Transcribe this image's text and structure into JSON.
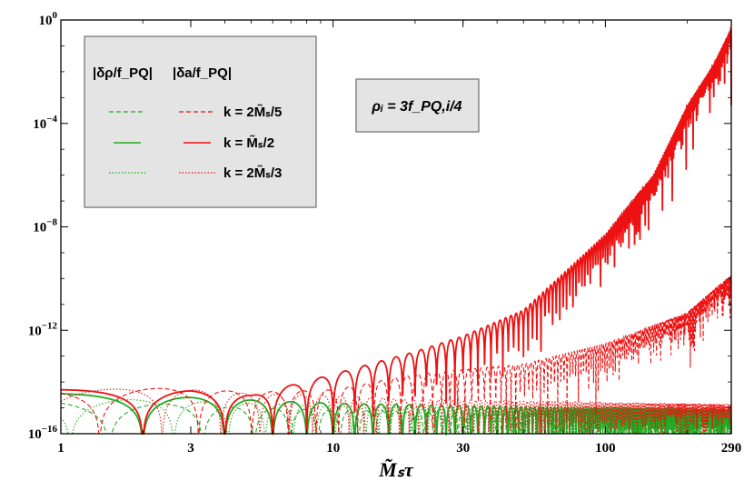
{
  "chart_data": {
    "type": "line",
    "title": "",
    "xlabel": "M̃ₛτ",
    "ylabel": "",
    "x_scale": "log",
    "y_scale": "log",
    "xlim": [
      1,
      290
    ],
    "ylim": [
      1e-16,
      1
    ],
    "x_ticks": [
      1,
      3,
      10,
      30,
      100,
      290
    ],
    "x_tick_labels": [
      "1",
      "3",
      "10",
      "30",
      "100",
      "290"
    ],
    "y_ticks": [
      1e-16,
      1e-12,
      1e-08,
      0.0001,
      1
    ],
    "y_tick_labels": [
      {
        "base": "10",
        "exp": "−16"
      },
      {
        "base": "10",
        "exp": "−12"
      },
      {
        "base": "10",
        "exp": "−8"
      },
      {
        "base": "10",
        "exp": "−4"
      },
      {
        "base": "10",
        "exp": "0"
      }
    ],
    "grid": false,
    "legend": {
      "position": "top-left",
      "column_headers": [
        "|δρ/f_PQ|",
        "|δa/f_PQ|"
      ],
      "rows": [
        "k = 2M̃ₛ/5",
        "k = M̃ₛ/2",
        "k =  2M̃ₛ/3"
      ]
    },
    "annotation": "ρᵢ = 3f_PQ,i/4",
    "series": [
      {
        "name": "|δρ/f_PQ|, k = 2M̃ₛ/5",
        "color": "#22aa22",
        "dash": "dashed",
        "x": [
          1,
          2,
          5,
          10,
          30,
          100,
          290
        ],
        "y": [
          2e-15,
          1.5e-15,
          1e-15,
          8e-16,
          7e-16,
          6e-16,
          5e-16
        ]
      },
      {
        "name": "|δρ/f_PQ|, k = M̃ₛ/2",
        "color": "#22aa22",
        "dash": "solid",
        "x": [
          1,
          2,
          5,
          10,
          30,
          100,
          290
        ],
        "y": [
          3.5e-15,
          3e-15,
          2e-15,
          1.5e-15,
          1.2e-15,
          1e-15,
          9e-16
        ]
      },
      {
        "name": "|δρ/f_PQ|, k = 2M̃ₛ/3",
        "color": "#22aa22",
        "dash": "dotted",
        "x": [
          1,
          2,
          5,
          10,
          30,
          100,
          290
        ],
        "y": [
          2.5e-15,
          2e-15,
          1.5e-15,
          1.2e-15,
          1e-15,
          8e-16,
          7e-16
        ]
      },
      {
        "name": "|δa/f_PQ|, k = 2M̃ₛ/5",
        "color": "#ee1111",
        "dash": "dashed",
        "x": [
          1,
          3,
          5,
          10,
          20,
          30,
          50,
          100,
          200,
          290
        ],
        "y": [
          6e-15,
          5.5e-15,
          4e-15,
          5e-15,
          2e-14,
          3e-14,
          5e-14,
          3e-13,
          5e-12,
          1.5e-10
        ]
      },
      {
        "name": "|δa/f_PQ|, k = M̃ₛ/2",
        "color": "#ee1111",
        "dash": "solid",
        "x": [
          1,
          3,
          5,
          10,
          20,
          30,
          50,
          100,
          150,
          200,
          250,
          290
        ],
        "y": [
          5e-15,
          4.5e-15,
          3e-15,
          2e-14,
          1.5e-13,
          6e-13,
          6e-12,
          5e-09,
          1e-06,
          0.0005,
          0.02,
          0.5
        ]
      },
      {
        "name": "|δa/f_PQ|, k = 2M̃ₛ/3",
        "color": "#ee1111",
        "dash": "dotted",
        "x": [
          1,
          3,
          5,
          10,
          20,
          30,
          50,
          100,
          200,
          290
        ],
        "y": [
          5.5e-15,
          5e-15,
          3.5e-15,
          3e-15,
          2e-15,
          2e-15,
          1.8e-15,
          1.6e-15,
          1.5e-15,
          1.4e-15
        ]
      }
    ]
  }
}
